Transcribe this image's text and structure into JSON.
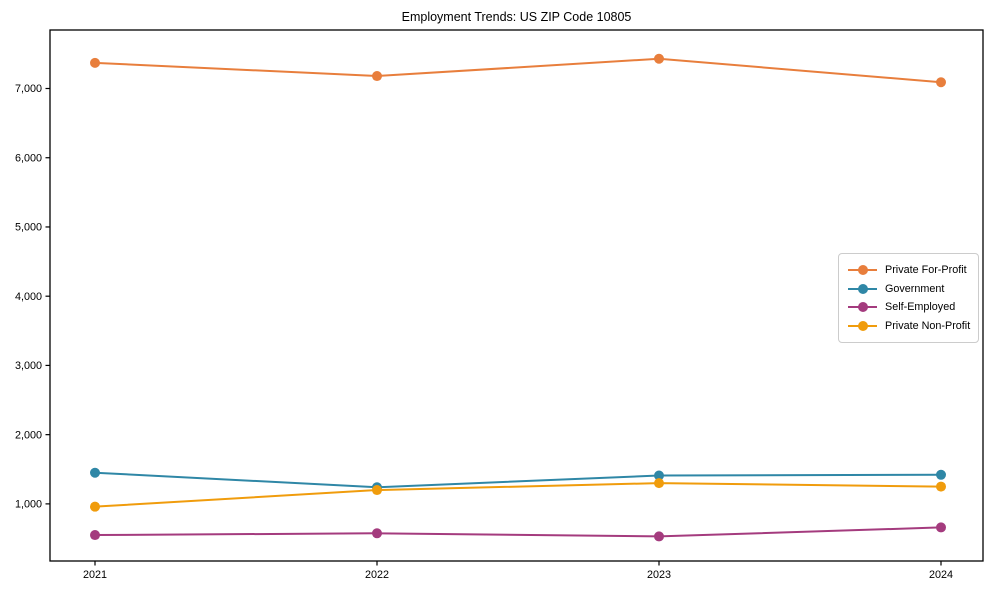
{
  "chart_data": {
    "type": "line",
    "title": "Employment Trends: US ZIP Code 10805",
    "x": [
      2021,
      2022,
      2023,
      2024
    ],
    "x_tick_labels": [
      "2021",
      "2022",
      "2023",
      "2024"
    ],
    "series": [
      {
        "name": "Private For-Profit",
        "color": "#e87e3c",
        "values": [
          7370,
          7180,
          7430,
          7090
        ]
      },
      {
        "name": "Government",
        "color": "#2f87a6",
        "values": [
          1450,
          1240,
          1410,
          1420
        ]
      },
      {
        "name": "Self-Employed",
        "color": "#a43b7e",
        "values": [
          550,
          575,
          530,
          660
        ]
      },
      {
        "name": "Private Non-Profit",
        "color": "#f09c0c",
        "values": [
          960,
          1200,
          1300,
          1250
        ]
      }
    ],
    "y_ticks": [
      1000,
      2000,
      3000,
      4000,
      5000,
      6000,
      7000
    ],
    "y_tick_labels": [
      "1,000",
      "2,000",
      "3,000",
      "4,000",
      "5,000",
      "6,000",
      "7,000"
    ],
    "ylim": [
      175,
      7845
    ],
    "grid": false,
    "legend_position": "center right",
    "marker": "circle",
    "background_color": "#ffffff",
    "axis_color": "#000000"
  }
}
